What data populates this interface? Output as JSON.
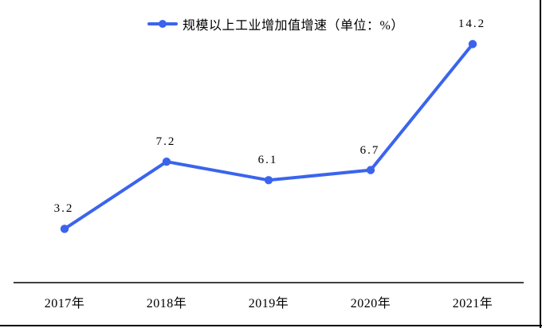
{
  "page": {
    "background": "#ffffff",
    "frame_color": "#000000"
  },
  "legend": {
    "label": "规模以上工业增加值增速（单位：%）",
    "marker": "line-dot",
    "color": "#3B64ED"
  },
  "chart_data": {
    "type": "line",
    "categories": [
      "2017年",
      "2018年",
      "2019年",
      "2020年",
      "2021年"
    ],
    "series": [
      {
        "name": "规模以上工业增加值增速",
        "values": [
          3.2,
          7.2,
          6.1,
          6.7,
          14.2
        ]
      }
    ],
    "data_labels": [
      "3.2",
      "7.2",
      "6.1",
      "6.7",
      "14.2"
    ],
    "title": "规模以上工业增加值增速（单位：%）",
    "unit": "%",
    "xlabel": "",
    "ylabel": "",
    "ylim": [
      0,
      16
    ],
    "grid": false,
    "y_axis_visible": false,
    "x_axis_visible": true,
    "legend_position": "top",
    "line_color": "#3B64ED",
    "marker": "circle",
    "label_color": "#000000",
    "axis_color": "#000000"
  }
}
